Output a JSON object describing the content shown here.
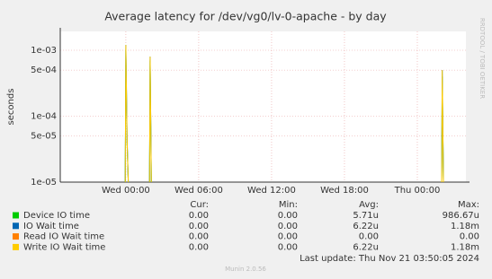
{
  "chart_data": {
    "type": "line",
    "title": "Average latency for /dev/vg0/lv-0-apache - by day",
    "y_label": "seconds",
    "side_text": "RRDTOOL / TOBI OETIKER",
    "yscale": "log",
    "grid": true,
    "x": [
      -0.05,
      0,
      0.1,
      0.2,
      1.0,
      1.95,
      2.0,
      2.1,
      14,
      26.0,
      26.05,
      26.15
    ],
    "xlim": [
      -5.4,
      28
    ],
    "xticks": [
      {
        "value": 0,
        "label": "Wed 00:00"
      },
      {
        "value": 6,
        "label": "Wed 06:00"
      },
      {
        "value": 12,
        "label": "Wed 12:00"
      },
      {
        "value": 18,
        "label": "Wed 18:00"
      },
      {
        "value": 24,
        "label": "Thu 00:00"
      }
    ],
    "ylim": [
      1e-05,
      0.00193
    ],
    "yticks": [
      {
        "value": 1e-05,
        "label": "1e-05"
      },
      {
        "value": 5e-05,
        "label": "5e-05"
      },
      {
        "value": 0.0001,
        "label": "1e-04"
      },
      {
        "value": 0.0005,
        "label": "5e-04"
      },
      {
        "value": 0.001,
        "label": "1e-03"
      }
    ],
    "stats_headers": [
      "Cur:",
      "Min:",
      "Avg:",
      "Max:"
    ],
    "series": [
      {
        "name": "Device IO time",
        "color": "#00cc00",
        "values": [
          1e-05,
          0.001,
          4e-05,
          1e-05,
          null,
          1e-05,
          0.0007,
          1e-05,
          null,
          1e-05,
          0.0004,
          1e-05
        ],
        "stats": [
          "0.00",
          "0.00",
          "5.71u",
          "986.67u"
        ]
      },
      {
        "name": "IO Wait time",
        "color": "#0066b3",
        "values": [
          1e-05,
          0.0012,
          4.5e-05,
          1e-05,
          null,
          1e-05,
          0.0008,
          1e-05,
          null,
          1e-05,
          0.0005,
          1e-05
        ],
        "stats": [
          "0.00",
          "0.00",
          "6.22u",
          "1.18m"
        ]
      },
      {
        "name": "Read IO Wait time",
        "color": "#ff8000",
        "values": [
          null,
          null,
          null,
          null,
          null,
          null,
          null,
          null,
          null,
          null,
          null,
          null
        ],
        "stats": [
          "0.00",
          "0.00",
          "0.00",
          "0.00"
        ]
      },
      {
        "name": "Write IO Wait time",
        "color": "#ffcc00",
        "values": [
          1e-05,
          0.0012,
          4.5e-05,
          1e-05,
          null,
          1e-05,
          0.0008,
          1e-05,
          null,
          1e-05,
          0.0005,
          1e-05
        ],
        "stats": [
          "0.00",
          "0.00",
          "6.22u",
          "1.18m"
        ]
      }
    ],
    "last_update": "Last update: Thu Nov 21 03:50:05 2024",
    "footer": "Munin 2.0.56"
  }
}
